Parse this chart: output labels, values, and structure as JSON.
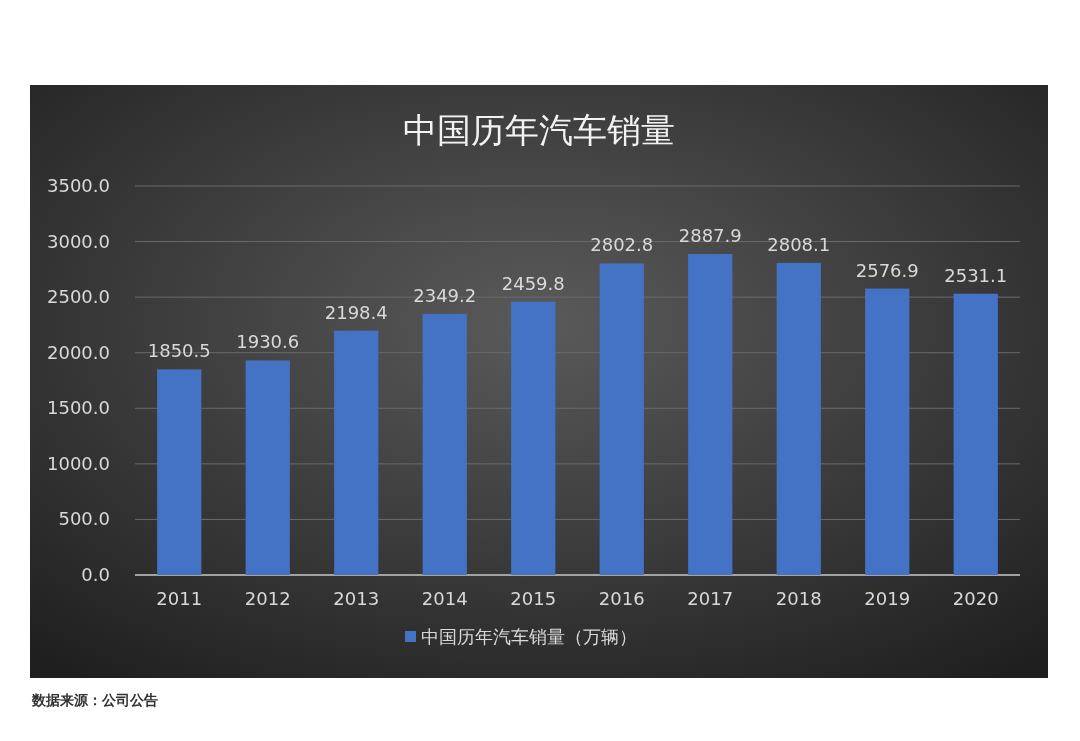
{
  "chart_data": {
    "type": "bar",
    "title": "中国历年汽车销量",
    "categories": [
      "2011",
      "2012",
      "2013",
      "2014",
      "2015",
      "2016",
      "2017",
      "2018",
      "2019",
      "2020"
    ],
    "series": [
      {
        "name": "中国历年汽车销量（万辆）",
        "color": "#4472c4",
        "values": [
          1850.5,
          1930.6,
          2198.4,
          2349.2,
          2459.8,
          2802.8,
          2887.9,
          2808.1,
          2576.9,
          2531.1
        ]
      }
    ],
    "ylim": [
      0,
      3500
    ],
    "yticks": [
      {
        "value": 0,
        "label": "0.0"
      },
      {
        "value": 500,
        "label": "500.0"
      },
      {
        "value": 1000,
        "label": "1000.0"
      },
      {
        "value": 1500,
        "label": "1500.0"
      },
      {
        "value": 2000,
        "label": "2000.0"
      },
      {
        "value": 2500,
        "label": "2500.0"
      },
      {
        "value": 3000,
        "label": "3000.0"
      },
      {
        "value": 3500,
        "label": "3500.0"
      }
    ],
    "grid": "y",
    "data_labels": true,
    "legend": "bottom",
    "annotations": [
      "数据来源：公司公告"
    ]
  }
}
